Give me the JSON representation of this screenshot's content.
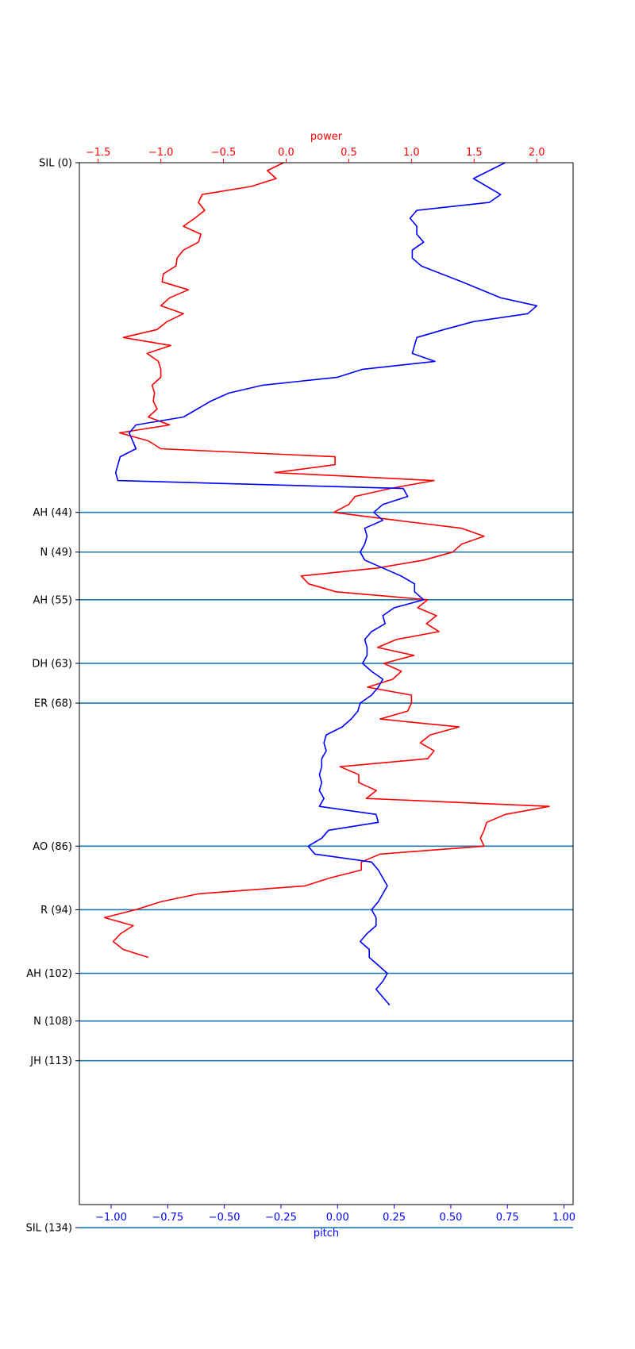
{
  "chart_data": {
    "type": "line",
    "title": "",
    "orientation": "vertical-profile",
    "grid": false,
    "legend": "none",
    "colors": {
      "power": "#ff0000",
      "pitch": "#0000ff",
      "boundaries": "#1f77b4"
    },
    "x_bottom": {
      "label": "pitch",
      "range": [
        -1.14,
        1.04
      ],
      "ticks": [
        -1.0,
        -0.75,
        -0.5,
        -0.25,
        0.0,
        0.25,
        0.5,
        0.75,
        1.0
      ],
      "tick_labels": [
        "−1.00",
        "−0.75",
        "−0.50",
        "−0.25",
        "0.00",
        "0.25",
        "0.50",
        "0.75",
        "1.00"
      ]
    },
    "x_top": {
      "label": "power",
      "range": [
        -1.65,
        2.29
      ],
      "ticks": [
        -1.5,
        -1.0,
        -0.5,
        0.0,
        0.5,
        1.0,
        1.5,
        2.0
      ],
      "tick_labels": [
        "−1.5",
        "−1.0",
        "−0.5",
        "0.0",
        "0.5",
        "1.0",
        "1.5",
        "2.0"
      ]
    },
    "y": {
      "label": "",
      "range": [
        0,
        165
      ],
      "inverted": true,
      "ticks": [
        0,
        44,
        49,
        55,
        63,
        68,
        86,
        94,
        102,
        108,
        113,
        134
      ],
      "tick_labels": [
        "SIL (0)",
        "AH (44)",
        "N (49)",
        "AH (55)",
        "DH (63)",
        "ER (68)",
        "AO (86)",
        "R (94)",
        "AH (102)",
        "N (108)",
        "JH (113)",
        "SIL (134)"
      ],
      "boundary_lines": [
        44,
        49,
        55,
        63,
        68,
        86,
        94,
        102,
        108,
        113,
        134
      ]
    },
    "series": [
      {
        "key": "power",
        "axis": "top",
        "points": [
          [
            -0.02,
            0
          ],
          [
            -0.15,
            1
          ],
          [
            -0.08,
            2
          ],
          [
            -0.28,
            3
          ],
          [
            -0.67,
            4
          ],
          [
            -0.7,
            5
          ],
          [
            -0.65,
            6
          ],
          [
            -0.73,
            7
          ],
          [
            -0.82,
            8
          ],
          [
            -0.68,
            9
          ],
          [
            -0.7,
            10
          ],
          [
            -0.82,
            11
          ],
          [
            -0.87,
            12
          ],
          [
            -0.88,
            13
          ],
          [
            -0.98,
            14
          ],
          [
            -0.99,
            15
          ],
          [
            -0.78,
            16
          ],
          [
            -0.93,
            17
          ],
          [
            -1.0,
            18
          ],
          [
            -0.82,
            19
          ],
          [
            -0.95,
            20
          ],
          [
            -1.03,
            21
          ],
          [
            -1.3,
            22
          ],
          [
            -0.92,
            23
          ],
          [
            -1.11,
            24
          ],
          [
            -1.02,
            25
          ],
          [
            -1.0,
            26
          ],
          [
            -1.0,
            27
          ],
          [
            -1.07,
            28
          ],
          [
            -1.05,
            29
          ],
          [
            -1.06,
            30
          ],
          [
            -1.03,
            31
          ],
          [
            -1.1,
            32
          ],
          [
            -0.93,
            33
          ],
          [
            -1.33,
            34
          ],
          [
            -1.1,
            35
          ],
          [
            -1.0,
            36
          ],
          [
            0.39,
            37
          ],
          [
            0.39,
            38
          ],
          [
            -0.09,
            39
          ],
          [
            1.18,
            40
          ],
          [
            0.83,
            41
          ],
          [
            0.55,
            42
          ],
          [
            0.5,
            43
          ],
          [
            0.38,
            44
          ],
          [
            0.88,
            45
          ],
          [
            1.4,
            46
          ],
          [
            1.58,
            47
          ],
          [
            1.4,
            48
          ],
          [
            1.33,
            49
          ],
          [
            1.1,
            50
          ],
          [
            0.73,
            51
          ],
          [
            0.12,
            52
          ],
          [
            0.18,
            53
          ],
          [
            0.4,
            54
          ],
          [
            1.13,
            55
          ],
          [
            1.05,
            56
          ],
          [
            1.2,
            57
          ],
          [
            1.12,
            58
          ],
          [
            1.22,
            59
          ],
          [
            0.88,
            60
          ],
          [
            0.73,
            61
          ],
          [
            1.02,
            62
          ],
          [
            0.78,
            63
          ],
          [
            0.92,
            64
          ],
          [
            0.85,
            65
          ],
          [
            0.65,
            66
          ],
          [
            1.0,
            67
          ],
          [
            1.0,
            68
          ],
          [
            0.97,
            69
          ],
          [
            0.75,
            70
          ],
          [
            1.38,
            71
          ],
          [
            1.15,
            72
          ],
          [
            1.07,
            73
          ],
          [
            1.18,
            74
          ],
          [
            1.13,
            75
          ],
          [
            0.43,
            76
          ],
          [
            0.58,
            77
          ],
          [
            0.58,
            78
          ],
          [
            0.72,
            79
          ],
          [
            0.64,
            80
          ],
          [
            2.1,
            81
          ],
          [
            1.75,
            82
          ],
          [
            1.6,
            83
          ],
          [
            1.58,
            84
          ],
          [
            1.55,
            85
          ],
          [
            1.58,
            86
          ],
          [
            0.75,
            87
          ],
          [
            0.6,
            88
          ],
          [
            0.6,
            89
          ],
          [
            0.35,
            90
          ],
          [
            0.15,
            91
          ],
          [
            -0.7,
            92
          ],
          [
            -1.0,
            93
          ],
          [
            -1.2,
            94
          ],
          [
            -1.45,
            95
          ],
          [
            -1.22,
            96
          ],
          [
            -1.32,
            97
          ],
          [
            -1.38,
            98
          ],
          [
            -1.3,
            99
          ],
          [
            -1.1,
            100
          ]
        ]
      },
      {
        "key": "pitch",
        "axis": "bottom",
        "points": [
          [
            0.74,
            0
          ],
          [
            0.6,
            2
          ],
          [
            0.72,
            4
          ],
          [
            0.67,
            5
          ],
          [
            0.35,
            6
          ],
          [
            0.32,
            7
          ],
          [
            0.35,
            8
          ],
          [
            0.35,
            9
          ],
          [
            0.38,
            10
          ],
          [
            0.33,
            11
          ],
          [
            0.33,
            12
          ],
          [
            0.37,
            13
          ],
          [
            0.55,
            15
          ],
          [
            0.72,
            17
          ],
          [
            0.88,
            18
          ],
          [
            0.84,
            19
          ],
          [
            0.6,
            20
          ],
          [
            0.47,
            21
          ],
          [
            0.35,
            22
          ],
          [
            0.33,
            24
          ],
          [
            0.43,
            25
          ],
          [
            0.11,
            26
          ],
          [
            0.0,
            27
          ],
          [
            -0.33,
            28
          ],
          [
            -0.48,
            29
          ],
          [
            -0.56,
            30
          ],
          [
            -0.62,
            31
          ],
          [
            -0.68,
            32
          ],
          [
            -0.89,
            33
          ],
          [
            -0.92,
            34
          ],
          [
            -0.89,
            36
          ],
          [
            -0.96,
            37
          ],
          [
            -0.98,
            39
          ],
          [
            -0.97,
            40
          ],
          [
            0.29,
            41
          ],
          [
            0.31,
            42
          ],
          [
            0.2,
            43
          ],
          [
            0.16,
            44
          ],
          [
            0.2,
            45
          ],
          [
            0.12,
            46
          ],
          [
            0.13,
            47
          ],
          [
            0.12,
            48
          ],
          [
            0.1,
            49
          ],
          [
            0.12,
            50
          ],
          [
            0.2,
            51
          ],
          [
            0.28,
            52
          ],
          [
            0.34,
            53
          ],
          [
            0.34,
            54
          ],
          [
            0.38,
            55
          ],
          [
            0.25,
            56
          ],
          [
            0.2,
            57
          ],
          [
            0.21,
            58
          ],
          [
            0.15,
            59
          ],
          [
            0.12,
            60
          ],
          [
            0.13,
            61
          ],
          [
            0.13,
            62
          ],
          [
            0.11,
            63
          ],
          [
            0.15,
            64
          ],
          [
            0.2,
            65
          ],
          [
            0.18,
            66
          ],
          [
            0.15,
            67
          ],
          [
            0.1,
            68
          ],
          [
            0.09,
            69
          ],
          [
            0.06,
            70
          ],
          [
            0.02,
            71
          ],
          [
            -0.05,
            72
          ],
          [
            -0.06,
            73
          ],
          [
            -0.05,
            74
          ],
          [
            -0.07,
            75
          ],
          [
            -0.07,
            76
          ],
          [
            -0.08,
            77
          ],
          [
            -0.07,
            78
          ],
          [
            -0.08,
            79
          ],
          [
            -0.06,
            80
          ],
          [
            -0.08,
            81
          ],
          [
            0.17,
            82
          ],
          [
            0.18,
            83
          ],
          [
            -0.04,
            84
          ],
          [
            -0.07,
            85
          ],
          [
            -0.13,
            86
          ],
          [
            -0.1,
            87
          ],
          [
            0.15,
            88
          ],
          [
            0.18,
            89
          ],
          [
            0.2,
            90
          ],
          [
            0.22,
            91
          ],
          [
            0.2,
            92
          ],
          [
            0.18,
            93
          ],
          [
            0.15,
            94
          ],
          [
            0.17,
            95
          ],
          [
            0.17,
            96
          ],
          [
            0.13,
            97
          ],
          [
            0.1,
            98
          ],
          [
            0.14,
            99
          ],
          [
            0.14,
            100
          ],
          [
            0.18,
            101
          ],
          [
            0.22,
            102
          ],
          [
            0.2,
            103
          ],
          [
            0.17,
            104
          ],
          [
            0.2,
            105
          ],
          [
            0.23,
            106
          ]
        ]
      }
    ]
  }
}
